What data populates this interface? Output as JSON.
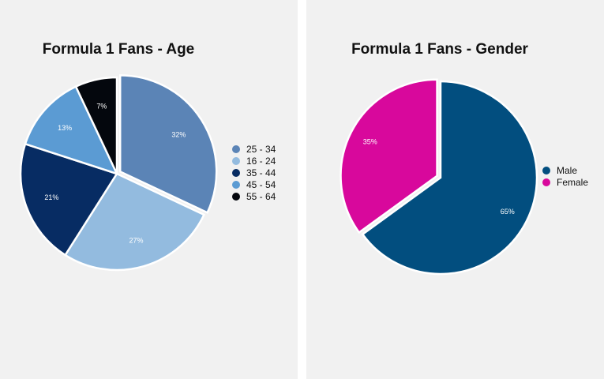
{
  "chart_data": [
    {
      "type": "pie",
      "title": "Formula 1 Fans - Age",
      "categories": [
        "25 - 34",
        "16 - 24",
        "35 - 44",
        "45 - 54",
        "55 - 64"
      ],
      "values": [
        32,
        27,
        21,
        13,
        7
      ],
      "labels": [
        "32%",
        "27%",
        "21%",
        "13%",
        "7%"
      ],
      "colors": [
        "#5b84b6",
        "#93bbdf",
        "#072c63",
        "#5b9bd3",
        "#04070d"
      ],
      "legend": [
        "25 - 34",
        "16 - 24",
        "35 - 44",
        "45 - 54",
        "55 - 64"
      ],
      "legend_position": "right",
      "exploded_slice": "25 - 34"
    },
    {
      "type": "pie",
      "title": "Formula 1 Fans - Gender",
      "categories": [
        "Male",
        "Female"
      ],
      "values": [
        65,
        35
      ],
      "labels": [
        "65%",
        "35%"
      ],
      "colors": [
        "#024e7f",
        "#d8089c"
      ],
      "legend": [
        "Male",
        "Female"
      ],
      "legend_position": "right",
      "exploded_slice": "Female"
    }
  ]
}
